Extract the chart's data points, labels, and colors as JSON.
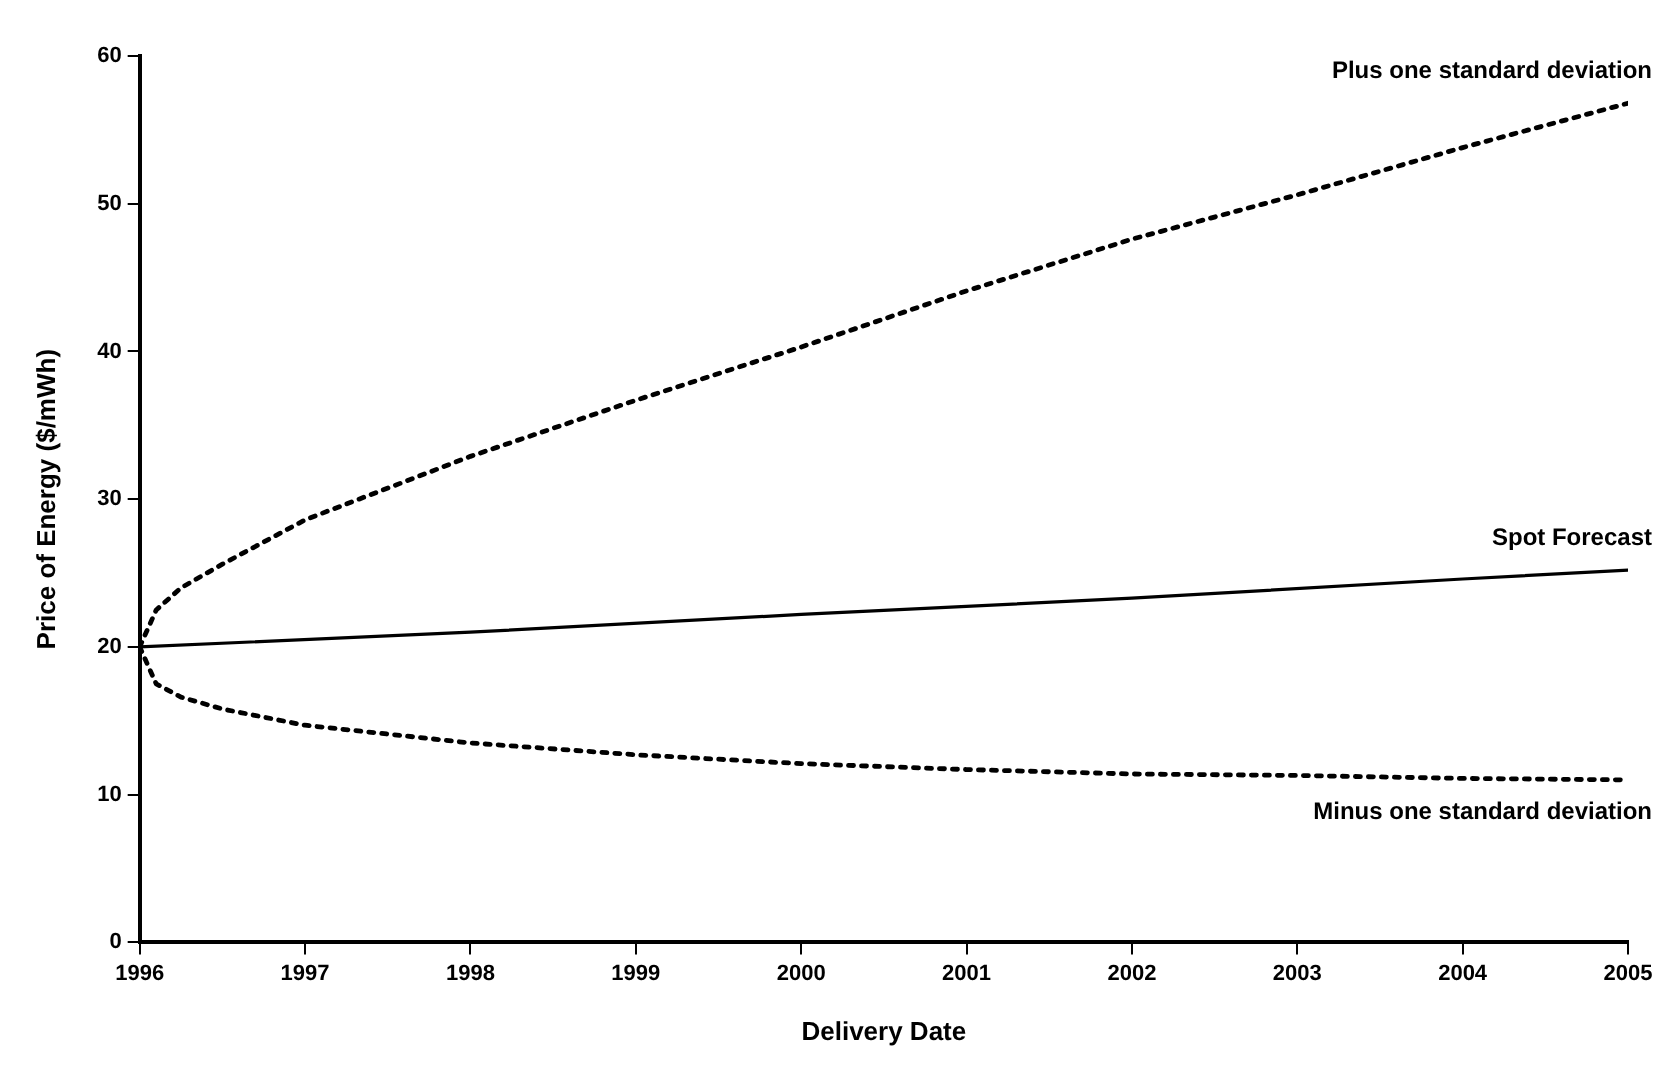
{
  "chart_data": {
    "type": "line",
    "xlabel": "Delivery Date",
    "ylabel": "Price of Energy ($/mWh)",
    "xlim": [
      1996,
      2005
    ],
    "xticks": [
      1996,
      1997,
      1998,
      1999,
      2000,
      2001,
      2002,
      2003,
      2004,
      2005
    ],
    "ylim": [
      0,
      60
    ],
    "yticks": [
      0,
      10,
      20,
      30,
      40,
      50,
      60
    ],
    "grid": false,
    "legend": false,
    "marker": "none",
    "series": [
      {
        "name": "Plus one standard deviation",
        "color": "#000000",
        "line_style": "dotted",
        "x": [
          1996,
          1996.1,
          1996.25,
          1996.5,
          1997,
          1998,
          1999,
          2000,
          2001,
          2002,
          2003,
          2004,
          2005
        ],
        "values": [
          20,
          22.5,
          24,
          25.6,
          28.6,
          32.9,
          36.7,
          40.3,
          44.1,
          47.6,
          50.6,
          53.8,
          56.8
        ]
      },
      {
        "name": "Spot Forecast",
        "color": "#000000",
        "line_style": "solid",
        "x": [
          1996,
          1998,
          2000,
          2002,
          2004,
          2005
        ],
        "values": [
          20,
          21,
          22.2,
          23.3,
          24.6,
          25.2
        ]
      },
      {
        "name": "Minus one standard deviation",
        "color": "#000000",
        "line_style": "dotted",
        "x": [
          1996,
          1996.1,
          1996.25,
          1996.5,
          1997,
          1998,
          1999,
          2000,
          2001,
          2002,
          2003,
          2004,
          2005
        ],
        "values": [
          20,
          17.5,
          16.6,
          15.8,
          14.7,
          13.5,
          12.7,
          12.1,
          11.7,
          11.4,
          11.3,
          11.1,
          11.0
        ]
      }
    ]
  }
}
